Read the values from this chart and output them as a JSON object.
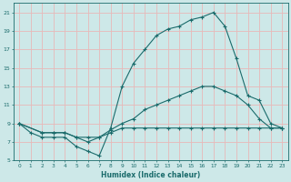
{
  "xlabel": "Humidex (Indice chaleur)",
  "xlim": [
    -0.5,
    23.5
  ],
  "ylim": [
    5,
    22
  ],
  "xticks": [
    0,
    1,
    2,
    3,
    4,
    5,
    6,
    7,
    8,
    9,
    10,
    11,
    12,
    13,
    14,
    15,
    16,
    17,
    18,
    19,
    20,
    21,
    22,
    23
  ],
  "yticks": [
    5,
    7,
    9,
    11,
    13,
    15,
    17,
    19,
    21
  ],
  "bg_color": "#cde8e8",
  "grid_color": "#e8b8b8",
  "line_color": "#1a6b6b",
  "line1_x": [
    0,
    1,
    2,
    3,
    4,
    5,
    6,
    7,
    8,
    9,
    10,
    11,
    12,
    13,
    14,
    15,
    16,
    17,
    18,
    19,
    20,
    21,
    22,
    23
  ],
  "line1_y": [
    9,
    8,
    7.5,
    7.5,
    7.5,
    6.5,
    6,
    5.5,
    8.5,
    13,
    15.5,
    17,
    18.5,
    19.2,
    19.5,
    20.2,
    20.5,
    21,
    19.5,
    16,
    12,
    11.5,
    9,
    8.5
  ],
  "line2_x": [
    0,
    2,
    3,
    4,
    5,
    6,
    7,
    8,
    9,
    10,
    11,
    12,
    13,
    14,
    15,
    16,
    17,
    18,
    19,
    20,
    21,
    22,
    23
  ],
  "line2_y": [
    9,
    8,
    8,
    8,
    7.5,
    7,
    7.5,
    8.3,
    9,
    9.5,
    10.5,
    11,
    11.5,
    12,
    12.5,
    13,
    13,
    12.5,
    12,
    11,
    9.5,
    8.5,
    8.5
  ],
  "line3_x": [
    0,
    2,
    3,
    4,
    5,
    6,
    7,
    8,
    9,
    10,
    11,
    12,
    13,
    14,
    15,
    16,
    17,
    18,
    19,
    20,
    21,
    22,
    23
  ],
  "line3_y": [
    9,
    8,
    8,
    8,
    7.5,
    7.5,
    7.5,
    8,
    8.5,
    8.5,
    8.5,
    8.5,
    8.5,
    8.5,
    8.5,
    8.5,
    8.5,
    8.5,
    8.5,
    8.5,
    8.5,
    8.5,
    8.5
  ]
}
